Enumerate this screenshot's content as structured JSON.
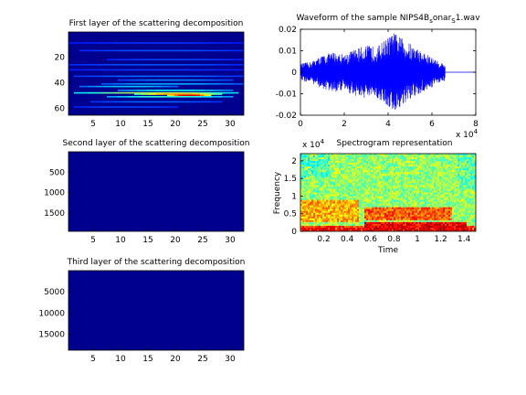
{
  "chart_data": [
    {
      "id": "layer1",
      "type": "heatmap",
      "title": "First layer of the scattering decomposition",
      "xticks": [
        5,
        10,
        15,
        20,
        25,
        30
      ],
      "yticks": [
        20,
        40,
        60
      ],
      "xlim": [
        0.5,
        32.5
      ],
      "ylim": [
        0.5,
        65.5
      ],
      "y_reversed": true,
      "colormap": "jet",
      "background_color": "#00008f",
      "bands": [
        {
          "y": 9,
          "x0": 1,
          "x1": 32,
          "level": 0.06
        },
        {
          "y": 15,
          "x0": 3,
          "x1": 32,
          "level": 0.1
        },
        {
          "y": 22,
          "x0": 8,
          "x1": 32,
          "level": 0.08
        },
        {
          "y": 26,
          "x0": 1,
          "x1": 32,
          "level": 0.1
        },
        {
          "y": 30,
          "x0": 1,
          "x1": 32,
          "level": 0.07
        },
        {
          "y": 35,
          "x0": 2,
          "x1": 32,
          "level": 0.13
        },
        {
          "y": 38,
          "x0": 10,
          "x1": 30,
          "level": 0.16
        },
        {
          "y": 41,
          "x0": 7,
          "x1": 32,
          "level": 0.2
        },
        {
          "y": 43,
          "x0": 3,
          "x1": 20,
          "level": 0.24
        },
        {
          "y": 46,
          "x0": 10,
          "x1": 30,
          "level": 0.3
        },
        {
          "y": 48,
          "x0": 2,
          "x1": 31,
          "level": 0.5
        },
        {
          "y": 49,
          "x0": 13,
          "x1": 28,
          "level": 0.7
        },
        {
          "y": 50,
          "x0": 19,
          "x1": 26,
          "level": 0.95
        },
        {
          "y": 51,
          "x0": 8,
          "x1": 30,
          "level": 0.35
        },
        {
          "y": 55,
          "x0": 5,
          "x1": 28,
          "level": 0.12
        },
        {
          "y": 59,
          "x0": 2,
          "x1": 20,
          "level": 0.08
        }
      ]
    },
    {
      "id": "layer2",
      "type": "heatmap",
      "title": "Second layer of the scattering decomposition",
      "xticks": [
        5,
        10,
        15,
        20,
        25,
        30
      ],
      "yticks": [
        500,
        1000,
        1500
      ],
      "xlim": [
        0.5,
        32.5
      ],
      "ylim": [
        0.5,
        1950
      ],
      "y_reversed": true,
      "colormap": "jet",
      "background_color": "#00008f",
      "bands": []
    },
    {
      "id": "layer3",
      "type": "heatmap",
      "title": "Third layer of the scattering decomposition",
      "xticks": [
        5,
        10,
        15,
        20,
        25,
        30
      ],
      "yticks": [
        5000,
        10000,
        15000
      ],
      "xlim": [
        0.5,
        32.5
      ],
      "ylim": [
        0.5,
        18800
      ],
      "y_reversed": true,
      "colormap": "jet",
      "background_color": "#00008f",
      "bands": []
    },
    {
      "id": "waveform",
      "type": "line",
      "title": "Waveform of the sample NIPS4B",
      "title_parts": [
        "Waveform of the sample NIPS4B",
        "s",
        "onar",
        "S",
        "1.wav"
      ],
      "xlim": [
        0,
        80000
      ],
      "ylim": [
        -0.02,
        0.02
      ],
      "xticks": [
        0,
        2,
        4,
        6,
        8
      ],
      "yticks": [
        -0.02,
        -0.01,
        0,
        0.01,
        0.02
      ],
      "xtick_labels": [
        "0",
        "2",
        "4",
        "6",
        "8"
      ],
      "ytick_labels": [
        "-0.02",
        "-0.01",
        "0",
        "0.01",
        "0.02"
      ],
      "x_multiplier": "x 10",
      "x_multiplier_exp": "4",
      "signal_end": 66000,
      "color": "#0000ff",
      "envelope": [
        {
          "x": 0,
          "amp": 0.004
        },
        {
          "x": 5000,
          "amp": 0.005
        },
        {
          "x": 9000,
          "amp": 0.0075
        },
        {
          "x": 15000,
          "amp": 0.0095
        },
        {
          "x": 20000,
          "amp": 0.0085
        },
        {
          "x": 25000,
          "amp": 0.011
        },
        {
          "x": 30000,
          "amp": 0.0125
        },
        {
          "x": 35000,
          "amp": 0.012
        },
        {
          "x": 40000,
          "amp": 0.0165
        },
        {
          "x": 43000,
          "amp": 0.0185
        },
        {
          "x": 46000,
          "amp": 0.016
        },
        {
          "x": 50000,
          "amp": 0.0135
        },
        {
          "x": 55000,
          "amp": 0.01
        },
        {
          "x": 60000,
          "amp": 0.007
        },
        {
          "x": 63000,
          "amp": 0.005
        },
        {
          "x": 66000,
          "amp": 0.004
        }
      ]
    },
    {
      "id": "spectrogram",
      "type": "heatmap",
      "title": "Spectrogram representation",
      "xlabel": "Time",
      "ylabel": "Frequency",
      "xlim": [
        0,
        1.5
      ],
      "ylim": [
        0,
        22050
      ],
      "xticks": [
        0.2,
        0.4,
        0.6,
        0.8,
        1,
        1.2,
        1.4
      ],
      "xtick_labels": [
        "0.2",
        "0.4",
        "0.6",
        "0.8",
        "1",
        "1.2",
        "1.4"
      ],
      "yticks": [
        0,
        5000,
        10000,
        15000,
        20000
      ],
      "ytick_labels": [
        "0",
        "0.5",
        "1",
        "1.5",
        "2"
      ],
      "y_multiplier": "x 10",
      "y_multiplier_exp": "4",
      "colormap": "jet",
      "base_level": 0.52,
      "energy_regions": [
        {
          "t0": 0.55,
          "t1": 1.42,
          "f0": 200,
          "f1": 2500,
          "level": 0.88
        },
        {
          "t0": 0.55,
          "t1": 1.3,
          "f0": 3000,
          "f1": 7000,
          "level": 0.78
        },
        {
          "t0": 0.0,
          "t1": 1.5,
          "f0": 0,
          "f1": 1500,
          "level": 0.8
        },
        {
          "t0": 0.0,
          "t1": 0.5,
          "f0": 2500,
          "f1": 9000,
          "level": 0.7
        }
      ],
      "cool_regions": [
        {
          "t0": 0.0,
          "t1": 0.25,
          "f0": 15000,
          "f1": 22050,
          "level": 0.38
        },
        {
          "t0": 1.35,
          "t1": 1.5,
          "f0": 12000,
          "f1": 22050,
          "level": 0.4
        }
      ]
    }
  ]
}
